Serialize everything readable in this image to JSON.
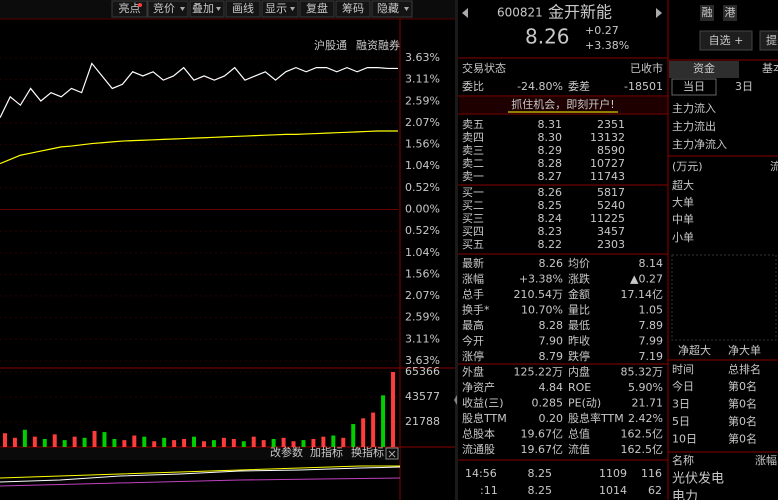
{
  "toolbar": {
    "buttons": [
      "亮点",
      "竞价",
      "叠加",
      "画线",
      "显示",
      "复盘",
      "筹码",
      "隐藏"
    ]
  },
  "chart_labels": [
    "沪股通",
    "融资融券"
  ],
  "chart_data": [
    {
      "type": "line",
      "ylim": [
        -3.63,
        3.63
      ],
      "yticks": [
        {
          "value": 3.63,
          "label": "3.63%"
        },
        {
          "value": 3.11,
          "label": "3.11%"
        },
        {
          "value": 2.59,
          "label": "2.59%"
        },
        {
          "value": 2.07,
          "label": "2.07%"
        },
        {
          "value": 1.56,
          "label": "1.56%"
        },
        {
          "value": 1.04,
          "label": "1.04%"
        },
        {
          "value": 0.52,
          "label": "0.52%"
        },
        {
          "value": 0,
          "label": "0.00%"
        },
        {
          "value": -0.52,
          "label": "0.52%"
        },
        {
          "value": -1.04,
          "label": "1.04%"
        },
        {
          "value": -1.56,
          "label": "1.56%"
        },
        {
          "value": -2.07,
          "label": "2.07%"
        },
        {
          "value": -2.59,
          "label": "2.59%"
        },
        {
          "value": -3.11,
          "label": "3.11%"
        },
        {
          "value": -3.63,
          "label": "3.63%"
        }
      ],
      "series": [
        {
          "color": "#ffffff",
          "values": [
            2.2,
            2.7,
            2.5,
            2.9,
            2.6,
            2.8,
            2.7,
            2.9,
            2.8,
            3.5,
            3.2,
            2.9,
            3.0,
            3.3,
            3.2,
            3.3,
            3.1,
            3.2,
            3.4,
            3.1,
            3.2,
            3.1,
            3.2,
            3.4,
            3.1,
            3.2,
            3.3,
            3.1,
            3.3,
            3.4,
            3.3,
            3.4,
            3.4,
            3.3,
            3.4,
            3.3,
            3.4,
            3.4,
            3.38,
            3.38
          ]
        },
        {
          "color": "#ffff00",
          "values": [
            1.1,
            1.2,
            1.3,
            1.35,
            1.4,
            1.45,
            1.5,
            1.52,
            1.55,
            1.58,
            1.6,
            1.62,
            1.64,
            1.65,
            1.66,
            1.67,
            1.68,
            1.69,
            1.7,
            1.71,
            1.72,
            1.73,
            1.74,
            1.75,
            1.76,
            1.77,
            1.78,
            1.79,
            1.8,
            1.8,
            1.81,
            1.82,
            1.83,
            1.84,
            1.85,
            1.86,
            1.87,
            1.88,
            1.88,
            1.88
          ]
        }
      ]
    },
    {
      "type": "bar",
      "ylim": [
        0,
        65366
      ],
      "yticks": [
        65366,
        43577,
        21788
      ],
      "up_color": "#ff3c3c",
      "down_color": "#00d000",
      "values": [
        12000,
        8000,
        15000,
        9000,
        7000,
        11000,
        6000,
        9000,
        8000,
        14000,
        13000,
        7000,
        6000,
        10000,
        9000,
        5000,
        8000,
        6000,
        7000,
        9000,
        5000,
        6000,
        8000,
        7000,
        5000,
        9000,
        6000,
        7000,
        8000,
        5000,
        6000,
        7000,
        9000,
        10000,
        8000,
        20000,
        25000,
        30000,
        45000,
        65366
      ]
    }
  ],
  "indicator_buttons": [
    "改参数",
    "加指标",
    "换指标"
  ],
  "quote": {
    "code": "600821",
    "name": "金开新能",
    "price": "8.26",
    "change": "+0.27",
    "pct": "+3.38%",
    "status": [
      "交易状态",
      "已收市"
    ],
    "weibi": [
      "委比",
      "-24.80%",
      "委差",
      "-18501"
    ],
    "ad": "抓住机会，即刻开户!",
    "book": [
      [
        "卖五",
        "8.31",
        "2351"
      ],
      [
        "卖四",
        "8.30",
        "13132"
      ],
      [
        "卖三",
        "8.29",
        "8590"
      ],
      [
        "卖二",
        "8.28",
        "10727"
      ],
      [
        "卖一",
        "8.27",
        "11743"
      ],
      [
        "买一",
        "8.26",
        "5817"
      ],
      [
        "买二",
        "8.25",
        "5240"
      ],
      [
        "买三",
        "8.24",
        "11225"
      ],
      [
        "买四",
        "8.23",
        "3457"
      ],
      [
        "买五",
        "8.22",
        "2303"
      ]
    ],
    "stats": [
      [
        "最新",
        "8.26",
        "均价",
        "8.14"
      ],
      [
        "涨幅",
        "+3.38%",
        "涨跌",
        "▲0.27"
      ],
      [
        "总手",
        "210.54万",
        "金额",
        "17.14亿"
      ],
      [
        "换手*",
        "10.70%",
        "量比",
        "1.05"
      ],
      [
        "最高",
        "8.28",
        "最低",
        "7.89"
      ],
      [
        "今开",
        "7.90",
        "昨收",
        "7.99"
      ],
      [
        "涨停",
        "8.79",
        "跌停",
        "7.19"
      ],
      [
        "外盘",
        "125.22万",
        "内盘",
        "85.32万"
      ],
      [
        "净资产",
        "4.84",
        "ROE",
        "5.90%"
      ],
      [
        "收益(三)",
        "0.285",
        "PE(动)",
        "21.71"
      ],
      [
        "股息TTM",
        "0.20",
        "股息率TTM",
        "2.42%"
      ],
      [
        "总股本",
        "19.67亿",
        "总值",
        "162.5亿"
      ],
      [
        "流通股",
        "19.67亿",
        "流值",
        "162.5亿"
      ]
    ],
    "ticks": [
      [
        "14:56",
        "8.25",
        "1109",
        "116"
      ],
      [
        ":11",
        "8.25",
        "1014",
        "62"
      ]
    ]
  },
  "fund_panel": {
    "buttons": [
      "融",
      "港",
      "自选 +",
      "提"
    ],
    "tabs": [
      "资金",
      "基本"
    ],
    "periods": [
      "当日",
      "3日"
    ],
    "flows": [
      "主力流入",
      "主力流出",
      "主力净流入"
    ],
    "unit": "(万元)",
    "unit_right": "流",
    "sizes": [
      "超大",
      "大单",
      "中单",
      "小单"
    ],
    "net": [
      "净超大",
      "净大单"
    ],
    "rank_header": [
      "时间",
      "总排名"
    ],
    "ranks": [
      [
        "今日",
        "第0名"
      ],
      [
        "3日",
        "第0名"
      ],
      [
        "5日",
        "第0名"
      ],
      [
        "10日",
        "第0名"
      ]
    ],
    "sector_header": [
      "名称",
      "涨幅"
    ],
    "sectors": [
      "光伏发电",
      "电力"
    ]
  }
}
